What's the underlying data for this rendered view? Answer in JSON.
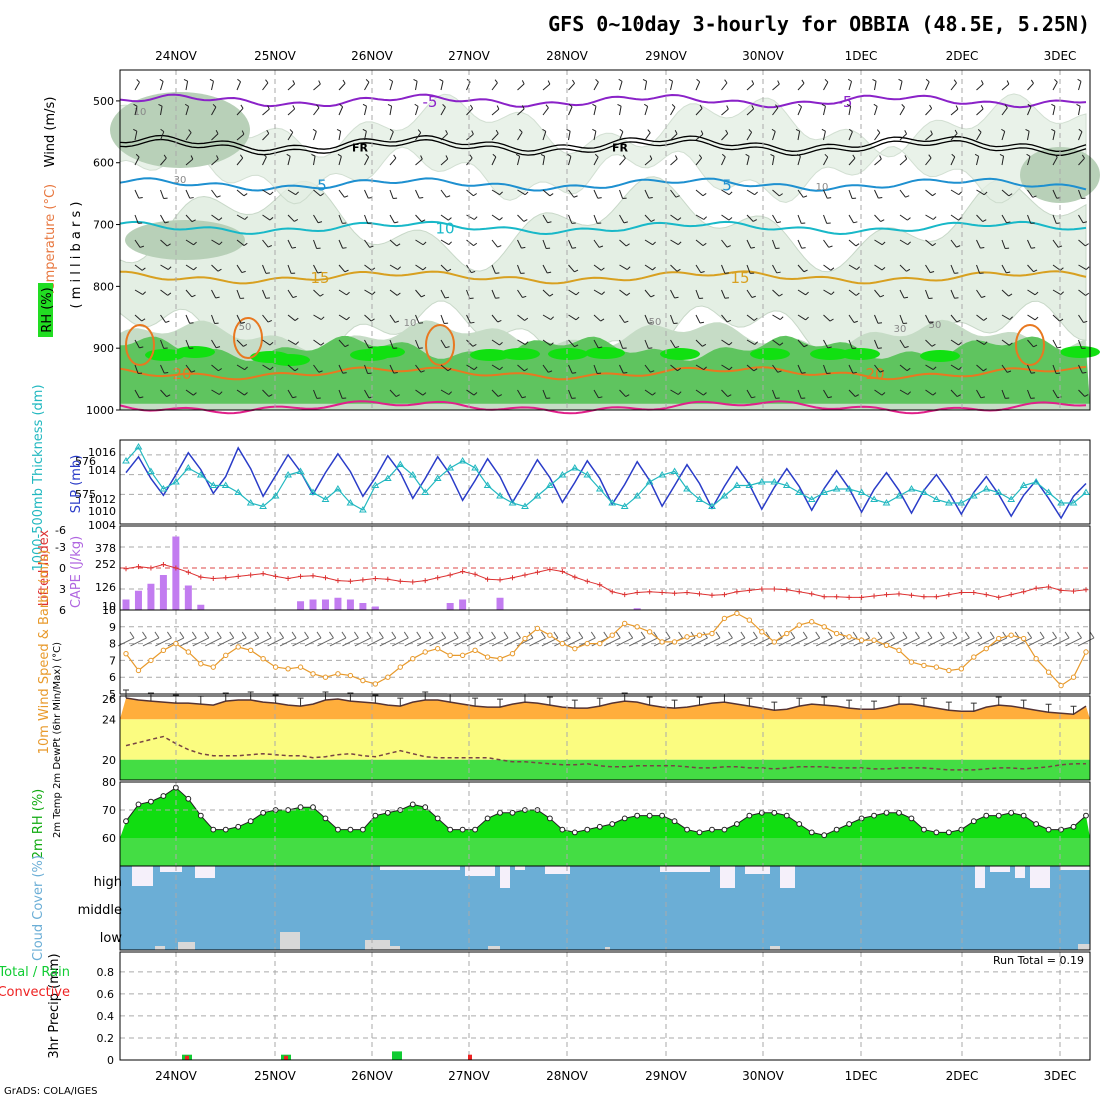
{
  "title": "GFS 0~10day 3-hourly for OBBIA (48.5E, 5.25N)",
  "credit": "GrADS: COLA/IGES",
  "dates": [
    "24NOV",
    "25NOV",
    "26NOV",
    "27NOV",
    "28NOV",
    "29NOV",
    "30NOV",
    "1DEC",
    "2DEC",
    "3DEC"
  ],
  "colors": {
    "rh_light": "#e4efe4",
    "rh_mid": "#b8d0b8",
    "rh_dark": "#5fc45f",
    "rh_vivid": "#11e011",
    "cape": "#c27cf0",
    "lifted": "#dd3333",
    "sea_blue": "#2a3cc8",
    "thick_cyan": "#22b8c0",
    "wind_orange": "#e89a2c",
    "temp_orange": "#ffae3c",
    "yellow": "#fbfc80",
    "green": "#44dd44",
    "cloud_blue": "#6baed6",
    "cloud_white": "#f5f0fa",
    "precip_green": "#11cc33",
    "precip_red": "#ee2222"
  },
  "chart_data": [
    {
      "panel": "upper-air",
      "type": "heatmap",
      "ylabel_wind": "Wind (m/s)",
      "ylabel_temp": "Temperature (°C)",
      "ylabel_rh": "RH (%)",
      "ylabel_units": "( m i l l i b a r s )",
      "yticks": [
        500,
        600,
        700,
        800,
        900,
        1000
      ],
      "ylim": [
        1000,
        450
      ],
      "contours": [
        {
          "label": "-5",
          "level_mb": 500,
          "color": "#8a22c8"
        },
        {
          "label": "FR",
          "level_mb": 572,
          "color": "#000000"
        },
        {
          "label": "5",
          "level_mb": 635,
          "color": "#1e90d0"
        },
        {
          "label": "10",
          "level_mb": 705,
          "color": "#18b8c8"
        },
        {
          "label": "15",
          "level_mb": 785,
          "color": "#d8a020"
        },
        {
          "label": "20",
          "level_mb": 940,
          "color": "#e87820"
        },
        {
          "label": "25",
          "level_mb": 995,
          "color": "#e0208a"
        }
      ],
      "rh_labels": [
        "10",
        "30",
        "50",
        "10",
        "50",
        "30",
        "50",
        "10"
      ]
    },
    {
      "panel": "thickness-slp",
      "type": "line",
      "ylabel_left": "1000-500mb Thickness (dm)",
      "ylabel_right": "SLP (mb)",
      "yticks_left": [
        "576",
        "575"
      ],
      "yticks_right": [
        "1016",
        "1014",
        "1012",
        "1010"
      ],
      "yticks_bottom": "1004",
      "series": [
        {
          "name": "SLP",
          "values": [
            1014.2,
            1015.8,
            1013.6,
            1011.9,
            1014.0,
            1016.2,
            1014.5,
            1012.1,
            1013.8,
            1016.7,
            1014.6,
            1011.8,
            1013.9,
            1016.0,
            1014.3,
            1012.0,
            1014.2,
            1016.1,
            1014.3,
            1011.8,
            1013.7,
            1015.9,
            1014.2,
            1011.6,
            1013.6,
            1015.8,
            1014.0,
            1011.4,
            1013.4,
            1015.6,
            1013.8,
            1011.2,
            1013.3,
            1015.5,
            1013.7,
            1011.2,
            1013.2,
            1015.4,
            1013.6,
            1011.0,
            1013.0,
            1015.3,
            1013.4,
            1010.8,
            1012.9,
            1015.0,
            1013.1,
            1010.6,
            1012.8,
            1014.8,
            1013.0,
            1010.5,
            1012.7,
            1014.6,
            1012.8,
            1010.4,
            1012.6,
            1014.4,
            1012.6,
            1010.2,
            1012.5,
            1014.2,
            1012.4,
            1010.1,
            1012.4,
            1014.0,
            1012.2,
            1010.0,
            1012.2,
            1013.8,
            1012.0,
            1009.8,
            1011.9,
            1013.4,
            1011.6,
            1009.6,
            1011.8,
            1013.1
          ]
        },
        {
          "name": "Thickness",
          "values": [
            576.0,
            576.4,
            575.7,
            575.2,
            575.4,
            575.8,
            575.6,
            575.3,
            575.3,
            575.1,
            574.8,
            574.7,
            575.0,
            575.6,
            575.7,
            575.1,
            574.9,
            575.2,
            574.8,
            574.6,
            575.3,
            575.5,
            575.9,
            575.6,
            575.1,
            575.5,
            575.8,
            576.0,
            575.8,
            575.3,
            575.0,
            574.8,
            574.7,
            575.0,
            575.3,
            575.6,
            575.8,
            575.6,
            575.2,
            574.8,
            574.7,
            575.0,
            575.4,
            575.6,
            575.7,
            575.2,
            574.9,
            574.7,
            575.0,
            575.3,
            575.3,
            575.4,
            575.4,
            575.3,
            575.1,
            574.9,
            575.1,
            575.2,
            575.2,
            575.1,
            574.9,
            574.8,
            575.0,
            575.2,
            575.1,
            574.9,
            574.8,
            574.8,
            575.0,
            575.2,
            575.1,
            574.9,
            575.3,
            575.4,
            575.1,
            574.8,
            574.8,
            575.1
          ]
        }
      ]
    },
    {
      "panel": "cape-li",
      "type": "bar",
      "ylabel_left": "Lifted Index",
      "ylabel_right": "CAPE (J/kg)",
      "yticks_left": [
        "-6",
        "-3",
        "0",
        "3",
        "6"
      ],
      "yticks_right": [
        "378",
        "252",
        "126",
        "10"
      ],
      "series": [
        {
          "name": "CAPE",
          "values": [
            60,
            110,
            150,
            200,
            420,
            140,
            30,
            0,
            0,
            0,
            0,
            0,
            0,
            0,
            50,
            60,
            60,
            70,
            60,
            40,
            20,
            0,
            0,
            0,
            0,
            0,
            40,
            60,
            0,
            0,
            70,
            0,
            0,
            0,
            0,
            0,
            0,
            0,
            0,
            0,
            0,
            10,
            0,
            0,
            0,
            0,
            0,
            0,
            0,
            0,
            0,
            0,
            0,
            0,
            0,
            0,
            0,
            0,
            0,
            0,
            0,
            0,
            0,
            0,
            0,
            0,
            0,
            0,
            0,
            0,
            0,
            0,
            0,
            0,
            0,
            0,
            0,
            0
          ]
        },
        {
          "name": "Lifted Index",
          "values": [
            0.1,
            -0.2,
            0.0,
            -0.5,
            0.0,
            0.6,
            1.3,
            1.5,
            1.4,
            1.2,
            1.0,
            0.8,
            1.2,
            1.5,
            1.2,
            1.1,
            1.4,
            1.8,
            1.9,
            1.7,
            1.5,
            1.6,
            1.9,
            2.0,
            1.8,
            1.4,
            1.0,
            0.5,
            0.9,
            1.6,
            1.7,
            1.4,
            1.0,
            0.6,
            0.2,
            0.5,
            1.3,
            1.9,
            2.4,
            3.4,
            3.8,
            3.5,
            3.4,
            3.5,
            3.6,
            3.5,
            3.7,
            3.9,
            3.8,
            3.4,
            3.2,
            3.0,
            3.0,
            3.1,
            3.4,
            3.7,
            4.1,
            4.1,
            4.2,
            4.2,
            4.0,
            3.8,
            3.7,
            3.9,
            4.1,
            4.1,
            3.8,
            3.5,
            3.5,
            3.8,
            4.2,
            3.8,
            3.4,
            2.9,
            2.7,
            3.2,
            3.3,
            3.1
          ]
        }
      ]
    },
    {
      "panel": "wind10m",
      "type": "line",
      "ylabel": "10m Wind Speed & Barbs (m/s)",
      "yticks": [
        "10",
        "9",
        "8",
        "7",
        "6",
        "5"
      ],
      "ylim": [
        5,
        10
      ],
      "series": [
        {
          "name": "Speed",
          "values": [
            7.4,
            6.4,
            7.0,
            7.6,
            8.0,
            7.5,
            6.8,
            6.6,
            7.3,
            7.8,
            7.6,
            7.1,
            6.6,
            6.5,
            6.6,
            6.2,
            6.0,
            6.2,
            6.1,
            5.8,
            5.6,
            6.0,
            6.6,
            7.1,
            7.5,
            7.7,
            7.3,
            7.3,
            7.6,
            7.2,
            7.1,
            7.4,
            8.3,
            8.9,
            8.5,
            8.0,
            7.7,
            8.0,
            8.0,
            8.5,
            9.2,
            9.0,
            8.7,
            8.1,
            8.1,
            8.4,
            8.5,
            8.6,
            9.5,
            9.8,
            9.4,
            8.7,
            8.1,
            8.6,
            9.1,
            9.3,
            9.0,
            8.6,
            8.4,
            8.2,
            8.2,
            7.9,
            7.6,
            6.9,
            6.7,
            6.6,
            6.4,
            6.5,
            7.2,
            7.7,
            8.3,
            8.5,
            8.3,
            7.1,
            6.3,
            5.5,
            6.0,
            7.5
          ]
        }
      ]
    },
    {
      "panel": "temp2m",
      "type": "area",
      "ylabel": "2m Temp 2m DewPt (6hr Min/Max) (°C)",
      "yticks": [
        "26",
        "24",
        "20"
      ],
      "series": [
        {
          "name": "Temp",
          "values": [
            26.1,
            25.9,
            25.8,
            25.7,
            25.6,
            25.6,
            25.5,
            25.4,
            25.8,
            25.9,
            25.9,
            25.7,
            25.6,
            25.4,
            25.3,
            25.5,
            25.9,
            26.0,
            25.8,
            25.7,
            25.6,
            25.4,
            25.3,
            25.7,
            25.9,
            25.9,
            25.7,
            25.5,
            25.3,
            25.2,
            25.2,
            25.5,
            25.7,
            25.6,
            25.4,
            25.2,
            25.1,
            25.1,
            25.3,
            25.6,
            25.8,
            25.7,
            25.4,
            25.2,
            25.1,
            25.2,
            25.4,
            25.6,
            25.7,
            25.5,
            25.3,
            25.1,
            24.9,
            25.0,
            25.3,
            25.5,
            25.4,
            25.3,
            25.1,
            25.0,
            25.0,
            25.2,
            25.5,
            25.5,
            25.3,
            25.1,
            24.9,
            24.8,
            24.8,
            25.2,
            25.4,
            25.3,
            25.1,
            24.9,
            24.7,
            24.6,
            24.5,
            25.3
          ]
        },
        {
          "name": "DewPt",
          "values": [
            21.4,
            21.7,
            22.0,
            22.3,
            21.6,
            21.0,
            20.6,
            20.4,
            20.4,
            20.4,
            20.5,
            20.6,
            20.5,
            20.4,
            20.4,
            20.2,
            20.3,
            20.5,
            20.6,
            20.4,
            20.3,
            20.6,
            20.9,
            20.6,
            20.3,
            20.2,
            20.2,
            20.2,
            20.2,
            20.2,
            20.0,
            19.8,
            19.8,
            19.7,
            19.6,
            19.5,
            19.5,
            19.6,
            19.4,
            19.3,
            19.3,
            19.4,
            19.4,
            19.4,
            19.4,
            19.3,
            19.2,
            19.2,
            19.3,
            19.3,
            19.2,
            19.2,
            19.1,
            19.2,
            19.3,
            19.3,
            19.3,
            19.2,
            19.2,
            19.2,
            19.1,
            19.1,
            19.2,
            19.2,
            19.2,
            19.1,
            19.0,
            19.0,
            19.0,
            19.1,
            19.2,
            19.2,
            19.1,
            19.2,
            19.3,
            19.5,
            19.6,
            19.6
          ]
        }
      ]
    },
    {
      "panel": "rh2m",
      "type": "area",
      "ylabel": "2m RH (%)",
      "yticks": [
        "80",
        "70",
        "60"
      ],
      "ylim": [
        50,
        80
      ],
      "series": [
        {
          "name": "RH",
          "values": [
            66,
            72,
            73,
            75,
            78,
            74,
            68,
            63,
            63,
            64,
            66,
            69,
            70,
            70,
            71,
            71,
            67,
            63,
            63,
            63,
            68,
            69,
            70,
            72,
            71,
            67,
            63,
            63,
            63,
            67,
            69,
            69,
            70,
            70,
            67,
            63,
            62,
            63,
            64,
            65,
            67,
            68,
            68,
            68,
            66,
            63,
            62,
            63,
            63,
            65,
            68,
            69,
            69,
            68,
            65,
            62,
            61,
            63,
            65,
            67,
            68,
            69,
            69,
            67,
            63,
            62,
            62,
            63,
            66,
            68,
            68,
            69,
            68,
            65,
            63,
            63,
            64,
            68
          ]
        }
      ]
    },
    {
      "panel": "cloud",
      "type": "bar",
      "ylabel": "Cloud Cover (%)",
      "layers": [
        "high",
        "middle",
        "low"
      ]
    },
    {
      "panel": "precip",
      "type": "bar",
      "ylabel_left": "Total / Rain",
      "ylabel_left2": "Convective",
      "ylabel": "3hr Precip (mm)",
      "yticks": [
        "0.8",
        "0.6",
        "0.4",
        "0.2",
        "0"
      ],
      "hidden_tick": "0.",
      "run_total": "Run Total = 0.19",
      "series": [
        {
          "name": "Total",
          "values": [
            0.03,
            0.03,
            0.06,
            0.0
          ]
        },
        {
          "name": "Convective",
          "values": [
            0.02,
            0.02,
            0.0,
            0.03
          ]
        }
      ]
    }
  ]
}
